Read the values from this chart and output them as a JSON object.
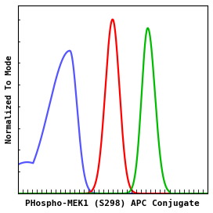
{
  "title": "",
  "xlabel": "PHospho-MEK1 (S298) APC Conjugate",
  "ylabel": "Normalized To Mode",
  "xlabel_fontsize": 8,
  "ylabel_fontsize": 7.5,
  "background_color": "#ffffff",
  "curves": [
    {
      "color": "#5555ff",
      "peak_x": 0.27,
      "peak_y": 0.82,
      "wl": 0.1,
      "wr": 0.042,
      "skew": -3.5
    },
    {
      "color": "#ff0000",
      "peak_x": 0.5,
      "peak_y": 1.0,
      "wl": 0.038,
      "wr": 0.038,
      "skew": 0
    },
    {
      "color": "#00bb00",
      "peak_x": 0.685,
      "peak_y": 0.95,
      "wl": 0.032,
      "wr": 0.038,
      "skew": 0
    }
  ],
  "xlim": [
    0.0,
    1.0
  ],
  "ylim": [
    0.0,
    1.08
  ],
  "linewidth": 1.6,
  "n_xticks": 40,
  "n_yticks": 8
}
